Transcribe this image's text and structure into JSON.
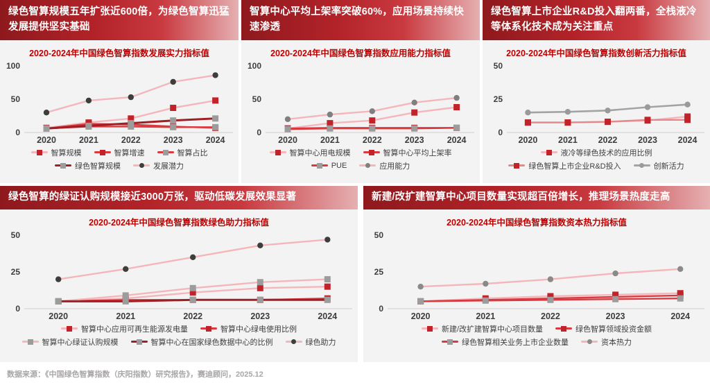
{
  "footer": {
    "source": "数据来源：《中国绿色智算指数（庆阳指数）研究报告》，赛迪顾问，2025.12"
  },
  "headlines": [
    "绿色智算规模五年扩张近600倍，为绿色智算迅猛发展提供坚实基础",
    "智算中心平均上架率突破60%，应用场景持续快速渗透",
    "绿色智算上市企业R&D投入翻两番，全栈液冷等体系化技术成为关注重点",
    "绿色智算的绿证认购规模接近3000万张，驱动低碳发展效果显著",
    "新建/改扩建智算中心项目数量实现超百倍增长，推理场景热度走高"
  ],
  "accent_colors": {
    "header_dark_red": "#8e191d",
    "header_red": "#b22329",
    "header_light": "#e5b0b2",
    "title_red": "#c00000",
    "panel_bg": "#f4f3f3",
    "axis_text": "#3d3d3d",
    "footer_gray": "#a9a6a6"
  },
  "chart_data": [
    {
      "type": "line",
      "title": "2020-2024年中国绿色智算指数发展实力指标值",
      "categories": [
        "2020",
        "2021",
        "2022",
        "2023",
        "2024"
      ],
      "ylim": [
        0,
        100
      ],
      "yticks": [
        0,
        50,
        100
      ],
      "grid": false,
      "legend_position": "bottom",
      "series": [
        {
          "name": "智算规模",
          "values": [
            7,
            15,
            21,
            37,
            48
          ],
          "line_color": "#f4b6ba",
          "line_width": 2.4,
          "marker": "square",
          "marker_color": "#c2232a"
        },
        {
          "name": "智算增速",
          "values": [
            6,
            13,
            12,
            9,
            7
          ],
          "line_color": "#d93a40",
          "line_width": 2.4,
          "marker": "square",
          "marker_color": "#c2232a"
        },
        {
          "name": "智算占比",
          "values": [
            6,
            9,
            9,
            8,
            8
          ],
          "line_color": "#d93a40",
          "line_width": 2.4,
          "marker": "square",
          "marker_color": "#9c9c9c"
        },
        {
          "name": "绿色智算规模",
          "values": [
            6,
            10,
            14,
            18,
            21
          ],
          "line_color": "#9e2024",
          "line_width": 3,
          "marker": "square",
          "marker_color": "#9c9c9c"
        },
        {
          "name": "发展潜力",
          "values": [
            30,
            48,
            53,
            76,
            86
          ],
          "line_color": "#f4b6ba",
          "line_width": 2.4,
          "marker": "circle",
          "marker_color": "#3d3d3d"
        }
      ]
    },
    {
      "type": "line",
      "title": "2020-2024年中国绿色智算指数应用能力指标值",
      "categories": [
        "2020",
        "2021",
        "2022",
        "2023",
        "2024"
      ],
      "ylim": [
        0,
        100
      ],
      "yticks": [
        0,
        50,
        100
      ],
      "grid": false,
      "legend_position": "bottom",
      "series": [
        {
          "name": "智算中心用电规模",
          "values": [
            6,
            14,
            18,
            30,
            38
          ],
          "line_color": "#f4b6ba",
          "line_width": 2.4,
          "marker": "square",
          "marker_color": "#c2232a"
        },
        {
          "name": "智算中心平均上架率",
          "values": [
            6,
            7,
            7,
            7,
            7
          ],
          "line_color": "#d93a40",
          "line_width": 2.4,
          "marker": "square",
          "marker_color": "#c2232a"
        },
        {
          "name": "PUE",
          "values": [
            5,
            6,
            6,
            6,
            7
          ],
          "line_color": "#d93a40",
          "line_width": 2.4,
          "marker": "square",
          "marker_color": "#9c9c9c"
        },
        {
          "name": "应用能力",
          "values": [
            20,
            27,
            32,
            45,
            52
          ],
          "line_color": "#f4b6ba",
          "line_width": 2.4,
          "marker": "circle",
          "marker_color": "#7f7f7f"
        }
      ]
    },
    {
      "type": "line",
      "title": "2020-2024年中国绿色智算指数创新活力指标值",
      "categories": [
        "2020",
        "2021",
        "2022",
        "2023",
        "2024"
      ],
      "ylim": [
        0,
        50
      ],
      "yticks": [
        0,
        25,
        50
      ],
      "grid": false,
      "legend_position": "bottom",
      "series": [
        {
          "name": "液冷等绿色技术的应用比例",
          "values": [
            7.5,
            7.5,
            8,
            9,
            12
          ],
          "line_color": "#f4b6ba",
          "line_width": 2.4,
          "marker": "square",
          "marker_color": "#c2232a"
        },
        {
          "name": "绿色智算上市企业R&D投入",
          "values": [
            7.5,
            7.5,
            8,
            9.5,
            9.5
          ],
          "line_color": "#e8878b",
          "line_width": 2.4,
          "marker": "square",
          "marker_color": "#c2232a"
        },
        {
          "name": "创新活力",
          "values": [
            15,
            15.5,
            16.5,
            19,
            21
          ],
          "line_color": "#a3a3a3",
          "line_width": 2.6,
          "marker": "circle",
          "marker_color": "#9a9a9a"
        }
      ]
    },
    {
      "type": "line",
      "title": "2020-2024年中国绿色智算指数绿色助力指标值",
      "categories": [
        "2020",
        "2021",
        "2022",
        "2023",
        "2024"
      ],
      "ylim": [
        0,
        50
      ],
      "yticks": [
        0,
        25,
        50
      ],
      "grid": false,
      "legend_position": "bottom",
      "series": [
        {
          "name": "智算中心应用可再生能源发电量",
          "values": [
            5,
            7,
            11,
            14,
            15
          ],
          "line_color": "#f4b6ba",
          "line_width": 2.4,
          "marker": "square",
          "marker_color": "#c2232a"
        },
        {
          "name": "智算中心绿电使用比例",
          "values": [
            5,
            6,
            6,
            6,
            7
          ],
          "line_color": "#d93a40",
          "line_width": 2.4,
          "marker": "square",
          "marker_color": "#c2232a"
        },
        {
          "name": "智算中心绿证认购规模",
          "values": [
            5,
            9,
            14,
            18,
            20
          ],
          "line_color": "#f4b6ba",
          "line_width": 2.4,
          "marker": "square",
          "marker_color": "#9c9c9c"
        },
        {
          "name": "智算中心在国家绿色数据中心的比例",
          "values": [
            5,
            5,
            6,
            6,
            6
          ],
          "line_color": "#9e2024",
          "line_width": 3,
          "marker": "square",
          "marker_color": "#9c9c9c"
        },
        {
          "name": "绿色助力",
          "values": [
            20,
            27,
            35,
            43,
            47
          ],
          "line_color": "#f4b6ba",
          "line_width": 2.4,
          "marker": "circle",
          "marker_color": "#3d3d3d"
        }
      ]
    },
    {
      "type": "line",
      "title": "2020-2024年中国绿色智算指数资本热力指标值",
      "categories": [
        "2020",
        "2021",
        "2022",
        "2023",
        "2024"
      ],
      "ylim": [
        0,
        50
      ],
      "yticks": [
        0,
        25,
        50
      ],
      "grid": false,
      "legend_position": "bottom",
      "series": [
        {
          "name": "新建/改扩建智算中心项目数量",
          "values": [
            5,
            7,
            8.5,
            9.5,
            10.5
          ],
          "line_color": "#f4b6ba",
          "line_width": 2.4,
          "marker": "square",
          "marker_color": "#c2232a"
        },
        {
          "name": "绿色智算领域投资金额",
          "values": [
            5,
            6,
            7,
            8,
            9
          ],
          "line_color": "#d93a40",
          "line_width": 2.4,
          "marker": "square",
          "marker_color": "#c2232a"
        },
        {
          "name": "绿色智算相关业务上市企业数量",
          "values": [
            5,
            5.5,
            6,
            6.5,
            7
          ],
          "line_color": "#d93a40",
          "line_width": 2.4,
          "marker": "square",
          "marker_color": "#9c9c9c"
        },
        {
          "name": "资本热力",
          "values": [
            15,
            17,
            20,
            24,
            27
          ],
          "line_color": "#f4b6ba",
          "line_width": 2.4,
          "marker": "circle",
          "marker_color": "#8a8a8a"
        }
      ]
    }
  ]
}
